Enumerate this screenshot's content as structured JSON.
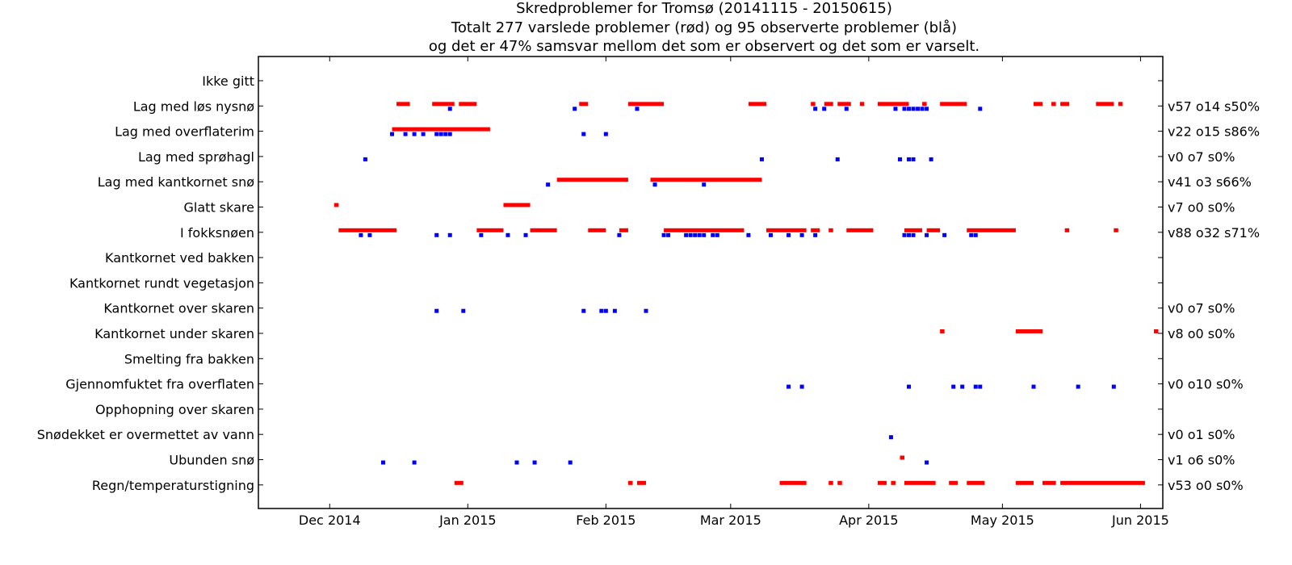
{
  "chart_data": {
    "type": "scatter",
    "title": [
      "Skredproblemer for Tromsø (20141115 - 20150615)",
      "Totalt 277 varslede problemer (rød) og 95 observerte problemer (blå)",
      "og det er 47% samsvar mellom det som er observert og det som er varselt."
    ],
    "xlabel": "",
    "ylabel": "",
    "x_range": [
      "2014-11-15",
      "2015-06-06"
    ],
    "x_ticks": [
      {
        "date": "2014-12-01",
        "label": "Dec 2014"
      },
      {
        "date": "2015-01-01",
        "label": "Jan 2015"
      },
      {
        "date": "2015-02-01",
        "label": "Feb 2015"
      },
      {
        "date": "2015-03-01",
        "label": "Mar 2015"
      },
      {
        "date": "2015-04-01",
        "label": "Apr 2015"
      },
      {
        "date": "2015-05-01",
        "label": "May 2015"
      },
      {
        "date": "2015-06-01",
        "label": "Jun 2015"
      }
    ],
    "categories": [
      "Ikke gitt",
      "Lag med løs nysnø",
      "Lag med overflaterim",
      "Lag med sprøhagl",
      "Lag med kantkornet snø",
      "Glatt skare",
      "I fokksnøen",
      "Kantkornet ved bakken",
      "Kantkornet rundt vegetasjon",
      "Kantkornet over skaren",
      "Kantkornet under skaren",
      "Smelting fra bakken",
      "Gjennomfuktet fra overflaten",
      "Opphopning over skaren",
      "Snødekket er overmettet av vann",
      "Ubunden snø",
      "Regn/temperaturstigning"
    ],
    "right_labels": [
      "",
      "v57 o14 s50%",
      "v22 o15 s86%",
      "v0 o7 s0%",
      "v41 o3 s66%",
      "v7 o0 s0%",
      "v88 o32 s71%",
      "",
      "",
      "v0 o7 s0%",
      "v8 o0 s0%",
      "",
      "v0 o10 s0%",
      "",
      "v0 o1 s0%",
      "v1 o6 s0%",
      "v53 o0 s0%"
    ],
    "colors": {
      "varslet": "#ff0000",
      "observert": "#0000ff"
    },
    "grid": false,
    "varslet": [
      {
        "category": "Lag med løs nysnø",
        "ranges": [
          [
            "2014-12-16",
            "2014-12-19"
          ],
          [
            "2014-12-24",
            "2014-12-29"
          ],
          [
            "2014-12-30",
            "2015-01-03"
          ],
          [
            "2015-01-26",
            "2015-01-28"
          ],
          [
            "2015-02-06",
            "2015-02-14"
          ],
          [
            "2015-03-05",
            "2015-03-09"
          ],
          [
            "2015-03-19",
            "2015-03-20"
          ],
          [
            "2015-03-22",
            "2015-03-24"
          ],
          [
            "2015-03-25",
            "2015-03-28"
          ],
          [
            "2015-03-30",
            "2015-03-31"
          ],
          [
            "2015-04-03",
            "2015-04-10"
          ],
          [
            "2015-04-13",
            "2015-04-14"
          ],
          [
            "2015-04-17",
            "2015-04-23"
          ],
          [
            "2015-05-08",
            "2015-05-10"
          ],
          [
            "2015-05-12",
            "2015-05-13"
          ],
          [
            "2015-05-14",
            "2015-05-16"
          ],
          [
            "2015-05-22",
            "2015-05-26"
          ],
          [
            "2015-05-27",
            "2015-05-28"
          ]
        ]
      },
      {
        "category": "Lag med overflaterim",
        "ranges": [
          [
            "2014-12-15",
            "2015-01-06"
          ]
        ]
      },
      {
        "category": "Lag med kantkornet snø",
        "ranges": [
          [
            "2015-01-21",
            "2015-02-06"
          ],
          [
            "2015-02-11",
            "2015-03-08"
          ]
        ]
      },
      {
        "category": "Glatt skare",
        "ranges": [
          [
            "2014-12-02",
            "2014-12-03"
          ],
          [
            "2015-01-09",
            "2015-01-15"
          ]
        ]
      },
      {
        "category": "I fokksnøen",
        "ranges": [
          [
            "2014-12-03",
            "2014-12-16"
          ],
          [
            "2015-01-03",
            "2015-01-09"
          ],
          [
            "2015-01-15",
            "2015-01-21"
          ],
          [
            "2015-01-28",
            "2015-02-01"
          ],
          [
            "2015-02-04",
            "2015-02-06"
          ],
          [
            "2015-02-14",
            "2015-03-04"
          ],
          [
            "2015-03-09",
            "2015-03-18"
          ],
          [
            "2015-03-19",
            "2015-03-21"
          ],
          [
            "2015-03-23",
            "2015-03-24"
          ],
          [
            "2015-03-27",
            "2015-04-02"
          ],
          [
            "2015-04-09",
            "2015-04-13"
          ],
          [
            "2015-04-14",
            "2015-04-17"
          ],
          [
            "2015-04-23",
            "2015-05-04"
          ],
          [
            "2015-05-15",
            "2015-05-16"
          ],
          [
            "2015-05-26",
            "2015-05-27"
          ]
        ]
      },
      {
        "category": "Kantkornet under skaren",
        "ranges": [
          [
            "2015-04-17",
            "2015-04-18"
          ],
          [
            "2015-05-04",
            "2015-05-10"
          ],
          [
            "2015-06-04",
            "2015-06-05"
          ]
        ]
      },
      {
        "category": "Ubunden snø",
        "ranges": [
          [
            "2015-04-08",
            "2015-04-09"
          ]
        ]
      },
      {
        "category": "Regn/temperaturstigning",
        "ranges": [
          [
            "2014-12-29",
            "2014-12-31"
          ],
          [
            "2015-02-06",
            "2015-02-07"
          ],
          [
            "2015-02-08",
            "2015-02-10"
          ],
          [
            "2015-03-12",
            "2015-03-18"
          ],
          [
            "2015-03-23",
            "2015-03-24"
          ],
          [
            "2015-03-25",
            "2015-03-26"
          ],
          [
            "2015-04-03",
            "2015-04-05"
          ],
          [
            "2015-04-06",
            "2015-04-07"
          ],
          [
            "2015-04-09",
            "2015-04-16"
          ],
          [
            "2015-04-19",
            "2015-04-21"
          ],
          [
            "2015-04-23",
            "2015-04-27"
          ],
          [
            "2015-05-04",
            "2015-05-08"
          ],
          [
            "2015-05-10",
            "2015-05-13"
          ],
          [
            "2015-05-14",
            "2015-06-02"
          ]
        ]
      }
    ],
    "observert": [
      {
        "category": "Lag med løs nysnø",
        "dates": [
          "2014-12-28",
          "2015-01-25",
          "2015-02-08",
          "2015-03-20",
          "2015-03-22",
          "2015-03-27",
          "2015-04-07",
          "2015-04-09",
          "2015-04-10",
          "2015-04-11",
          "2015-04-12",
          "2015-04-13",
          "2015-04-14",
          "2015-04-26"
        ]
      },
      {
        "category": "Lag med overflaterim",
        "dates": [
          "2014-12-15",
          "2014-12-18",
          "2014-12-20",
          "2014-12-22",
          "2014-12-25",
          "2014-12-26",
          "2014-12-27",
          "2014-12-28",
          "2015-01-27",
          "2015-02-01"
        ]
      },
      {
        "category": "Lag med sprøhagl",
        "dates": [
          "2014-12-09",
          "2015-03-08",
          "2015-03-25",
          "2015-04-08",
          "2015-04-10",
          "2015-04-11",
          "2015-04-15"
        ]
      },
      {
        "category": "Lag med kantkornet snø",
        "dates": [
          "2015-01-19",
          "2015-02-12",
          "2015-02-23"
        ]
      },
      {
        "category": "I fokksnøen",
        "dates": [
          "2014-12-08",
          "2014-12-10",
          "2014-12-25",
          "2014-12-28",
          "2015-01-04",
          "2015-01-10",
          "2015-01-14",
          "2015-02-04",
          "2015-02-14",
          "2015-02-15",
          "2015-02-19",
          "2015-02-20",
          "2015-02-21",
          "2015-02-22",
          "2015-02-23",
          "2015-02-25",
          "2015-02-26",
          "2015-03-05",
          "2015-03-10",
          "2015-03-14",
          "2015-03-17",
          "2015-03-20",
          "2015-04-09",
          "2015-04-10",
          "2015-04-11",
          "2015-04-14",
          "2015-04-18",
          "2015-04-24",
          "2015-04-25"
        ]
      },
      {
        "category": "Kantkornet over skaren",
        "dates": [
          "2014-12-25",
          "2014-12-31",
          "2015-01-27",
          "2015-01-31",
          "2015-02-01",
          "2015-02-03",
          "2015-02-10"
        ]
      },
      {
        "category": "Gjennomfuktet fra overflaten",
        "dates": [
          "2015-03-14",
          "2015-03-17",
          "2015-04-10",
          "2015-04-20",
          "2015-04-22",
          "2015-04-25",
          "2015-04-26",
          "2015-05-08",
          "2015-05-18",
          "2015-05-26"
        ]
      },
      {
        "category": "Snødekket er overmettet av vann",
        "dates": [
          "2015-04-06"
        ]
      },
      {
        "category": "Ubunden snø",
        "dates": [
          "2014-12-13",
          "2014-12-20",
          "2015-01-12",
          "2015-01-16",
          "2015-01-24",
          "2015-04-14"
        ]
      }
    ]
  }
}
